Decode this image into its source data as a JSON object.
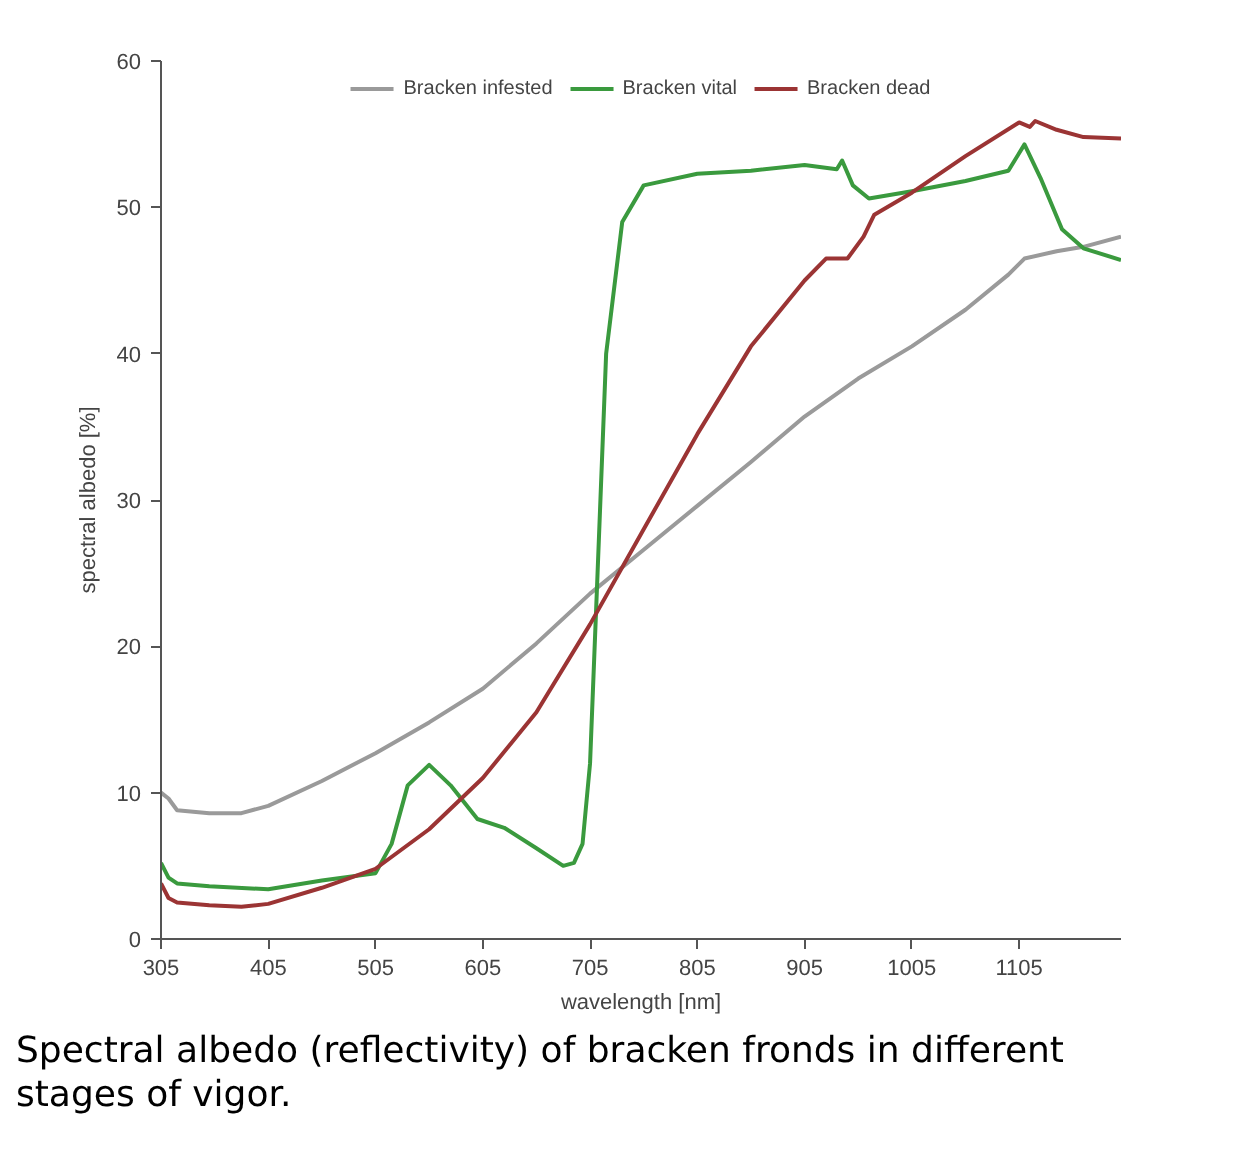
{
  "chart_data": {
    "type": "line",
    "xlabel": "wavelength [nm]",
    "ylabel": "spectral albedo [%]",
    "xlim": [
      305,
      1200
    ],
    "xticks": [
      305,
      405,
      505,
      605,
      705,
      805,
      905,
      1005,
      1105
    ],
    "ylim": [
      0,
      60
    ],
    "yticks": [
      0,
      10,
      20,
      30,
      40,
      50,
      60
    ],
    "grid": false,
    "legend": "top",
    "marker": "none",
    "line_style": "solid",
    "annotations": [
      "Spectral albedo (reflectivity) of bracken fronds in different stages of vigor."
    ],
    "series": [
      {
        "name": "Bracken infested",
        "color": "#9a9a9a",
        "x": [
          305,
          312,
          320,
          350,
          380,
          405,
          455,
          505,
          555,
          605,
          655,
          705,
          755,
          805,
          855,
          905,
          955,
          1005,
          1055,
          1095,
          1110,
          1140,
          1165,
          1200
        ],
        "values": [
          10.0,
          9.6,
          8.8,
          8.6,
          8.6,
          9.1,
          10.8,
          12.7,
          14.8,
          17.1,
          20.2,
          23.6,
          26.6,
          29.6,
          32.6,
          35.7,
          38.3,
          40.5,
          43.0,
          45.4,
          46.5,
          47.0,
          47.3,
          48.0
        ]
      },
      {
        "name": "Bracken vital",
        "color": "#3a9a3e",
        "x": [
          305,
          312,
          320,
          350,
          405,
          455,
          505,
          520,
          535,
          555,
          575,
          600,
          625,
          655,
          680,
          690,
          698,
          705,
          712,
          720,
          735,
          755,
          805,
          855,
          905,
          935,
          940,
          950,
          965,
          1005,
          1055,
          1095,
          1110,
          1125,
          1145,
          1165,
          1200
        ],
        "values": [
          5.2,
          4.2,
          3.8,
          3.6,
          3.4,
          4.0,
          4.5,
          6.5,
          10.5,
          11.9,
          10.5,
          8.2,
          7.6,
          6.2,
          5.0,
          5.2,
          6.5,
          12.0,
          25.0,
          40.0,
          49.0,
          51.5,
          52.3,
          52.5,
          52.9,
          52.6,
          53.2,
          51.5,
          50.6,
          51.1,
          51.8,
          52.5,
          54.3,
          52.0,
          48.5,
          47.2,
          46.4
        ]
      },
      {
        "name": "Bracken dead",
        "color": "#9b3434",
        "x": [
          305,
          312,
          320,
          350,
          380,
          405,
          455,
          505,
          555,
          605,
          655,
          705,
          755,
          805,
          855,
          905,
          925,
          945,
          960,
          970,
          1005,
          1055,
          1105,
          1115,
          1120,
          1140,
          1165,
          1200
        ],
        "values": [
          3.8,
          2.8,
          2.5,
          2.3,
          2.2,
          2.4,
          3.5,
          4.8,
          7.5,
          11.0,
          15.5,
          21.5,
          28.0,
          34.5,
          40.5,
          45.0,
          46.5,
          46.5,
          48.0,
          49.5,
          51.0,
          53.5,
          55.8,
          55.5,
          55.9,
          55.3,
          54.8,
          54.7
        ]
      }
    ]
  }
}
